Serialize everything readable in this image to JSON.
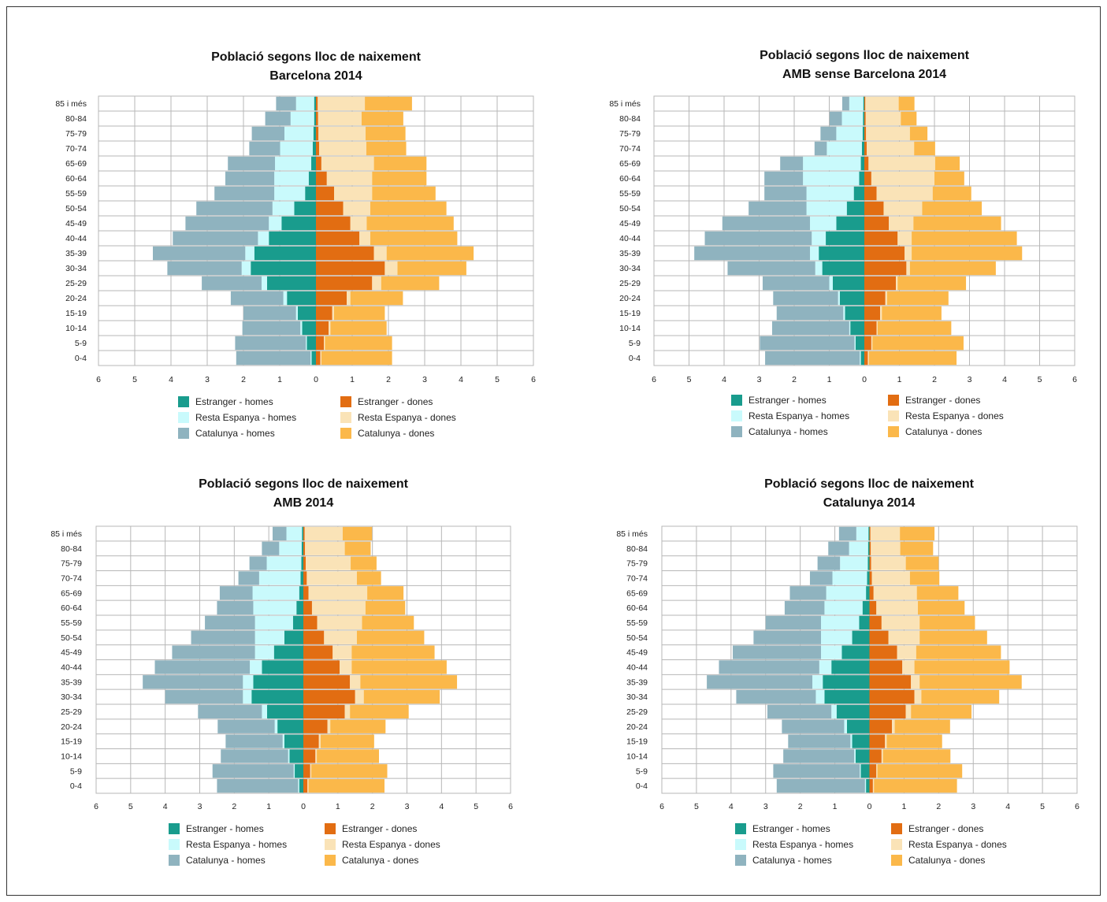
{
  "colors": {
    "estranger_homes": "#199c8d",
    "resta_homes": "#c9fafc",
    "catalunya_homes": "#8fb3bf",
    "estranger_dones": "#e26d12",
    "resta_dones": "#fae3b7",
    "catalunya_dones": "#fbb84a",
    "grid": "#b7b7b7"
  },
  "chart_data": [
    {
      "type": "bar",
      "orientation": "horizontal-population-pyramid",
      "stacked": true,
      "title": "Població segons lloc de naixement",
      "subtitle": "Barcelona 2014",
      "categories": [
        "85 i més",
        "80-84",
        "75-79",
        "70-74",
        "65-69",
        "60-64",
        "55-59",
        "50-54",
        "45-49",
        "40-44",
        "35-39",
        "30-34",
        "25-29",
        "20-24",
        "15-19",
        "10-14",
        "5-9",
        "0-4"
      ],
      "xlim": [
        -6,
        6
      ],
      "x_tick_labels": [
        "6",
        "5",
        "4",
        "3",
        "2",
        "1",
        "0",
        "1",
        "2",
        "3",
        "4",
        "5",
        "6"
      ],
      "grid": true,
      "legend_position": "bottom",
      "series": [
        {
          "name": "Estranger - homes",
          "side": "left",
          "values": [
            0.05,
            0.05,
            0.07,
            0.09,
            0.13,
            0.2,
            0.3,
            0.6,
            0.95,
            1.3,
            1.7,
            1.8,
            1.35,
            0.8,
            0.5,
            0.38,
            0.25,
            0.12
          ]
        },
        {
          "name": "Resta Espanya - homes",
          "side": "left",
          "values": [
            0.5,
            0.65,
            0.8,
            0.9,
            1.0,
            0.95,
            0.85,
            0.6,
            0.35,
            0.3,
            0.25,
            0.25,
            0.15,
            0.1,
            0.05,
            0.05,
            0.03,
            0.03
          ]
        },
        {
          "name": "Catalunya - homes",
          "side": "left",
          "values": [
            0.55,
            0.7,
            0.9,
            0.85,
            1.3,
            1.35,
            1.65,
            2.1,
            2.3,
            2.35,
            2.55,
            2.05,
            1.65,
            1.45,
            1.45,
            1.6,
            1.95,
            2.05
          ]
        },
        {
          "name": "Estranger - dones",
          "side": "right",
          "values": [
            0.05,
            0.06,
            0.07,
            0.09,
            0.15,
            0.3,
            0.5,
            0.75,
            0.95,
            1.2,
            1.6,
            1.9,
            1.55,
            0.85,
            0.45,
            0.35,
            0.22,
            0.12
          ]
        },
        {
          "name": "Resta Espanya - dones",
          "side": "right",
          "values": [
            1.3,
            1.2,
            1.3,
            1.3,
            1.45,
            1.25,
            1.05,
            0.75,
            0.45,
            0.3,
            0.35,
            0.35,
            0.25,
            0.1,
            0.05,
            0.05,
            0.03,
            0.03
          ]
        },
        {
          "name": "Catalunya - dones",
          "side": "right",
          "values": [
            1.3,
            1.15,
            1.1,
            1.1,
            1.45,
            1.5,
            1.75,
            2.1,
            2.4,
            2.4,
            2.4,
            1.9,
            1.6,
            1.45,
            1.4,
            1.55,
            1.85,
            1.95
          ]
        }
      ]
    },
    {
      "type": "bar",
      "orientation": "horizontal-population-pyramid",
      "stacked": true,
      "title": "Població segons lloc de naixement",
      "subtitle": "AMB sense Barcelona 2014",
      "categories": [
        "85 i més",
        "80-84",
        "75-79",
        "70-74",
        "65-69",
        "60-64",
        "55-59",
        "50-54",
        "45-49",
        "40-44",
        "35-39",
        "30-34",
        "25-29",
        "20-24",
        "15-19",
        "10-14",
        "5-9",
        "0-4"
      ],
      "xlim": [
        -6,
        6
      ],
      "x_tick_labels": [
        "6",
        "5",
        "4",
        "3",
        "2",
        "1",
        "0",
        "1",
        "2",
        "3",
        "4",
        "5",
        "6"
      ],
      "grid": true,
      "legend_position": "bottom",
      "series": [
        {
          "name": "Estranger - homes",
          "side": "left",
          "values": [
            0.03,
            0.04,
            0.05,
            0.07,
            0.1,
            0.15,
            0.3,
            0.5,
            0.8,
            1.1,
            1.3,
            1.2,
            0.9,
            0.7,
            0.55,
            0.4,
            0.25,
            0.1
          ]
        },
        {
          "name": "Resta Espanya - homes",
          "side": "left",
          "values": [
            0.4,
            0.6,
            0.75,
            1.0,
            1.65,
            1.6,
            1.35,
            1.15,
            0.75,
            0.4,
            0.25,
            0.2,
            0.1,
            0.05,
            0.05,
            0.03,
            0.03,
            0.03
          ]
        },
        {
          "name": "Catalunya - homes",
          "side": "left",
          "values": [
            0.2,
            0.35,
            0.45,
            0.35,
            0.65,
            1.1,
            1.2,
            1.65,
            2.5,
            3.05,
            3.3,
            2.5,
            1.9,
            1.85,
            1.9,
            2.2,
            2.7,
            2.7
          ]
        },
        {
          "name": "Estranger - dones",
          "side": "right",
          "values": [
            0.03,
            0.04,
            0.05,
            0.07,
            0.12,
            0.2,
            0.35,
            0.55,
            0.7,
            0.95,
            1.15,
            1.2,
            0.9,
            0.6,
            0.45,
            0.35,
            0.2,
            0.1
          ]
        },
        {
          "name": "Resta Espanya - dones",
          "side": "right",
          "values": [
            0.95,
            1.0,
            1.25,
            1.35,
            1.9,
            1.8,
            1.6,
            1.1,
            0.7,
            0.4,
            0.2,
            0.1,
            0.05,
            0.05,
            0.05,
            0.03,
            0.03,
            0.03
          ]
        },
        {
          "name": "Catalunya - dones",
          "side": "right",
          "values": [
            0.45,
            0.45,
            0.5,
            0.6,
            0.7,
            0.85,
            1.1,
            1.7,
            2.5,
            3.0,
            3.15,
            2.45,
            1.95,
            1.75,
            1.7,
            2.1,
            2.6,
            2.5
          ]
        }
      ]
    },
    {
      "type": "bar",
      "orientation": "horizontal-population-pyramid",
      "stacked": true,
      "title": "Població segons lloc de naixement",
      "subtitle": "AMB 2014",
      "categories": [
        "85 i més",
        "80-84",
        "75-79",
        "70-74",
        "65-69",
        "60-64",
        "55-59",
        "50-54",
        "45-49",
        "40-44",
        "35-39",
        "30-34",
        "25-29",
        "20-24",
        "15-19",
        "10-14",
        "5-9",
        "0-4"
      ],
      "xlim": [
        -6,
        6
      ],
      "x_tick_labels": [
        "6",
        "5",
        "4",
        "3",
        "2",
        "1",
        "0",
        "1",
        "2",
        "3",
        "4",
        "5",
        "6"
      ],
      "grid": true,
      "legend_position": "bottom",
      "series": [
        {
          "name": "Estranger - homes",
          "side": "left",
          "values": [
            0.04,
            0.05,
            0.06,
            0.08,
            0.12,
            0.2,
            0.3,
            0.55,
            0.85,
            1.2,
            1.45,
            1.5,
            1.05,
            0.75,
            0.55,
            0.4,
            0.25,
            0.12
          ]
        },
        {
          "name": "Resta Espanya - homes",
          "side": "left",
          "values": [
            0.45,
            0.65,
            1.0,
            1.2,
            1.35,
            1.25,
            1.1,
            0.85,
            0.55,
            0.35,
            0.3,
            0.25,
            0.15,
            0.08,
            0.05,
            0.04,
            0.03,
            0.03
          ]
        },
        {
          "name": "Catalunya - homes",
          "side": "left",
          "values": [
            0.4,
            0.5,
            0.5,
            0.6,
            0.95,
            1.05,
            1.45,
            1.85,
            2.4,
            2.75,
            2.9,
            2.25,
            1.85,
            1.65,
            1.65,
            1.95,
            2.35,
            2.35
          ]
        },
        {
          "name": "Estranger - dones",
          "side": "right",
          "values": [
            0.04,
            0.05,
            0.07,
            0.1,
            0.15,
            0.25,
            0.4,
            0.6,
            0.85,
            1.05,
            1.35,
            1.5,
            1.2,
            0.7,
            0.45,
            0.35,
            0.2,
            0.12
          ]
        },
        {
          "name": "Resta Espanya - dones",
          "side": "right",
          "values": [
            1.1,
            1.15,
            1.3,
            1.45,
            1.7,
            1.55,
            1.3,
            0.95,
            0.55,
            0.35,
            0.3,
            0.25,
            0.15,
            0.08,
            0.05,
            0.04,
            0.03,
            0.03
          ]
        },
        {
          "name": "Catalunya - dones",
          "side": "right",
          "values": [
            0.85,
            0.75,
            0.75,
            0.7,
            1.05,
            1.15,
            1.5,
            1.95,
            2.4,
            2.75,
            2.8,
            2.2,
            1.7,
            1.6,
            1.55,
            1.8,
            2.2,
            2.2
          ]
        }
      ]
    },
    {
      "type": "bar",
      "orientation": "horizontal-population-pyramid",
      "stacked": true,
      "title": "Població segons lloc de naixement",
      "subtitle": "Catalunya 2014",
      "categories": [
        "85 i més",
        "80-84",
        "75-79",
        "70-74",
        "65-69",
        "60-64",
        "55-59",
        "50-54",
        "45-49",
        "40-44",
        "35-39",
        "30-34",
        "25-29",
        "20-24",
        "15-19",
        "10-14",
        "5-9",
        "0-4"
      ],
      "xlim": [
        -6,
        6
      ],
      "x_tick_labels": [
        "6",
        "5",
        "4",
        "3",
        "2",
        "1",
        "0",
        "1",
        "2",
        "3",
        "4",
        "5",
        "6"
      ],
      "grid": true,
      "legend_position": "bottom",
      "series": [
        {
          "name": "Estranger - homes",
          "side": "left",
          "values": [
            0.03,
            0.04,
            0.05,
            0.07,
            0.1,
            0.2,
            0.3,
            0.5,
            0.8,
            1.1,
            1.35,
            1.3,
            0.95,
            0.65,
            0.5,
            0.4,
            0.25,
            0.1
          ]
        },
        {
          "name": "Resta Espanya - homes",
          "side": "left",
          "values": [
            0.35,
            0.55,
            0.8,
            1.0,
            1.15,
            1.1,
            1.1,
            0.9,
            0.6,
            0.35,
            0.3,
            0.25,
            0.15,
            0.08,
            0.05,
            0.04,
            0.03,
            0.03
          ]
        },
        {
          "name": "Catalunya - homes",
          "side": "left",
          "values": [
            0.5,
            0.6,
            0.65,
            0.65,
            1.05,
            1.15,
            1.6,
            1.95,
            2.55,
            2.9,
            3.05,
            2.3,
            1.85,
            1.8,
            1.8,
            2.05,
            2.5,
            2.55
          ]
        },
        {
          "name": "Estranger - dones",
          "side": "right",
          "values": [
            0.03,
            0.04,
            0.05,
            0.07,
            0.12,
            0.2,
            0.35,
            0.55,
            0.8,
            0.95,
            1.2,
            1.3,
            1.05,
            0.65,
            0.45,
            0.35,
            0.2,
            0.1
          ]
        },
        {
          "name": "Resta Espanya - dones",
          "side": "right",
          "values": [
            0.85,
            0.85,
            1.0,
            1.1,
            1.25,
            1.2,
            1.1,
            0.9,
            0.55,
            0.35,
            0.25,
            0.2,
            0.15,
            0.08,
            0.05,
            0.04,
            0.03,
            0.03
          ]
        },
        {
          "name": "Catalunya - dones",
          "side": "right",
          "values": [
            1.0,
            0.95,
            0.95,
            0.85,
            1.2,
            1.35,
            1.6,
            1.95,
            2.45,
            2.75,
            2.95,
            2.25,
            1.75,
            1.6,
            1.6,
            1.95,
            2.45,
            2.4
          ]
        }
      ]
    }
  ]
}
